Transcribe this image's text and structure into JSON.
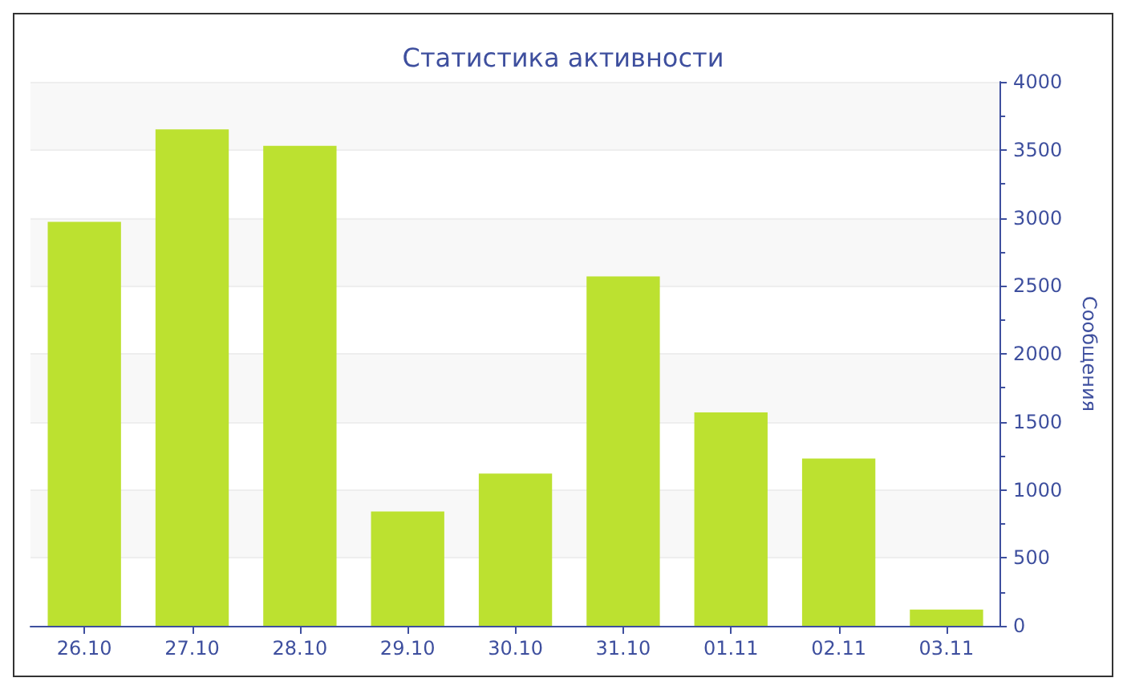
{
  "chart_data": {
    "type": "bar",
    "title": "Статистика активности",
    "ylabel": "Сообщения",
    "categories": [
      "26.10",
      "27.10",
      "28.10",
      "29.10",
      "30.10",
      "31.10",
      "01.11",
      "02.11",
      "03.11"
    ],
    "values": [
      2970,
      3650,
      3530,
      840,
      1120,
      2570,
      1570,
      1230,
      120
    ],
    "color": "#bce130",
    "ylim": [
      0,
      4000
    ],
    "yticks": [
      0,
      500,
      1000,
      1500,
      2000,
      2500,
      3000,
      3500,
      4000
    ],
    "grid": "y"
  }
}
